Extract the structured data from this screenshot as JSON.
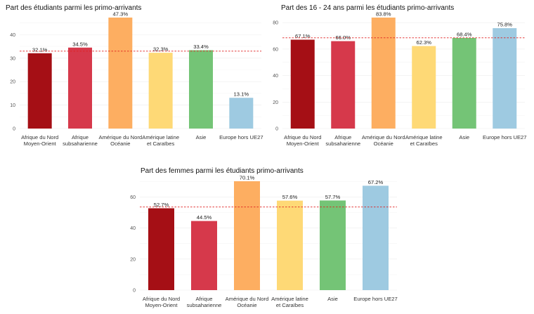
{
  "chart_data": [
    {
      "type": "bar",
      "title": "Part des étudiants parmi les primo-arrivants",
      "categories": [
        [
          "Afrique du Nord",
          "Moyen-Orient"
        ],
        [
          "Afrique",
          "subsaharienne"
        ],
        [
          "Amérique du Nord",
          "Océanie"
        ],
        [
          "Amérique latine",
          "et Caraïbes"
        ],
        [
          "Asie"
        ],
        [
          "Europe hors UE27"
        ]
      ],
      "values": [
        32.1,
        34.5,
        47.3,
        32.3,
        33.4,
        13.1
      ],
      "labels": [
        "32.1%",
        "34.5%",
        "47.3%",
        "32.3%",
        "33.4%",
        "13.1%"
      ],
      "colors": [
        "#a50f15",
        "#d6394b",
        "#fdae61",
        "#fed976",
        "#74c476",
        "#9ecae1"
      ],
      "yticks": [
        0,
        10,
        20,
        30,
        40
      ],
      "ylim": [
        0,
        47.3
      ],
      "reference_line": 33.0,
      "xlabel": "",
      "ylabel": ""
    },
    {
      "type": "bar",
      "title": "Part des 16 - 24 ans parmi les étudiants primo-arrivants",
      "categories": [
        [
          "Afrique du Nord",
          "Moyen-Orient"
        ],
        [
          "Afrique",
          "subsaharienne"
        ],
        [
          "Amérique du Nord",
          "Océanie"
        ],
        [
          "Amérique latine",
          "et Caraïbes"
        ],
        [
          "Asie"
        ],
        [
          "Europe hors UE27"
        ]
      ],
      "values": [
        67.1,
        66.0,
        83.8,
        62.3,
        68.4,
        75.8
      ],
      "labels": [
        "67.1%",
        "66.0%",
        "83.8%",
        "62.3%",
        "68.4%",
        "75.8%"
      ],
      "colors": [
        "#a50f15",
        "#d6394b",
        "#fdae61",
        "#fed976",
        "#74c476",
        "#9ecae1"
      ],
      "yticks": [
        0,
        20,
        40,
        60,
        80
      ],
      "ylim": [
        0,
        83.8
      ],
      "reference_line": 68.5,
      "xlabel": "",
      "ylabel": ""
    },
    {
      "type": "bar",
      "title": "Part des femmes parmi les étudiants primo-arrivants",
      "categories": [
        [
          "Afrique du Nord",
          "Moyen-Orient"
        ],
        [
          "Afrique",
          "subsaharienne"
        ],
        [
          "Amérique du Nord",
          "Océanie"
        ],
        [
          "Amérique latine",
          "et Caraïbes"
        ],
        [
          "Asie"
        ],
        [
          "Europe hors UE27"
        ]
      ],
      "values": [
        52.7,
        44.5,
        70.1,
        57.6,
        57.7,
        67.2
      ],
      "labels": [
        "52.7%",
        "44.5%",
        "70.1%",
        "57.6%",
        "57.7%",
        "67.2%"
      ],
      "colors": [
        "#a50f15",
        "#d6394b",
        "#fdae61",
        "#fed976",
        "#74c476",
        "#9ecae1"
      ],
      "yticks": [
        0,
        20,
        40,
        60
      ],
      "ylim": [
        0,
        70.1
      ],
      "reference_line": 53.5,
      "xlabel": "",
      "ylabel": ""
    }
  ]
}
